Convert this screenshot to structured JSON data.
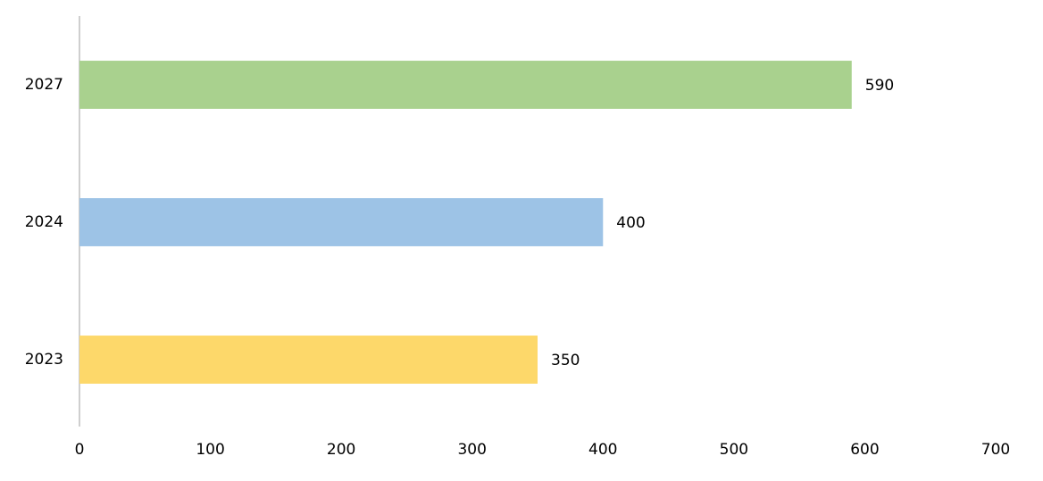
{
  "chart_data": {
    "type": "bar",
    "orientation": "horizontal",
    "categories": [
      "2023",
      "2024",
      "2027"
    ],
    "values": [
      350,
      400,
      590
    ],
    "colors": [
      "#fdd86a",
      "#9dc3e6",
      "#a9d18e"
    ],
    "xlim": [
      0,
      700
    ],
    "xticks": [
      0,
      100,
      200,
      300,
      400,
      500,
      600,
      700
    ],
    "grid": false,
    "data_labels": true
  }
}
